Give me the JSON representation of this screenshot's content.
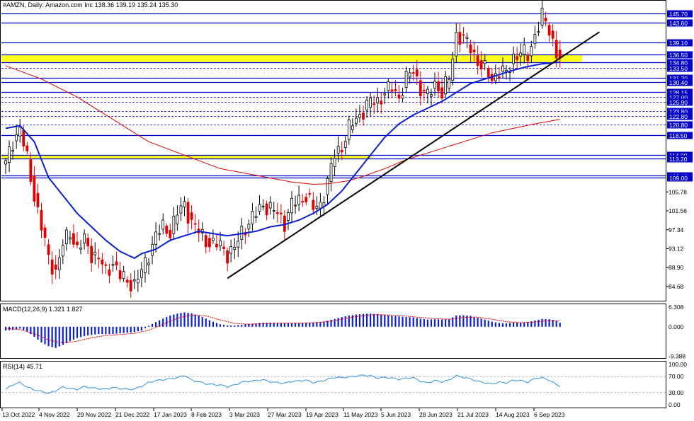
{
  "chart_data": {
    "type": "candlestick",
    "header": {
      "symbol": "#AMZN",
      "timeframe": "Daily",
      "name": "Amazon.com Inc",
      "ohlc": "138.36 139.19 135.24 135.30"
    },
    "price_axis": {
      "range": [
        81.5,
        148.5
      ],
      "grid_labels": [
        "105.78",
        "101.56",
        "97.34",
        "93.12",
        "88.90",
        "84.68"
      ]
    },
    "levels": [
      {
        "value": 145.7,
        "label": "145.70",
        "style": "solid"
      },
      {
        "value": 143.6,
        "label": "143.60",
        "style": "solid"
      },
      {
        "value": 139.1,
        "label": "139.10",
        "style": "solid"
      },
      {
        "value": 136.5,
        "label": "136.50",
        "style": "solid"
      },
      {
        "value": 134.8,
        "label": "134.80",
        "style": "solid"
      },
      {
        "value": 133.5,
        "label": "133.50",
        "style": "dashed"
      },
      {
        "value": 131.2,
        "label": "131.20",
        "style": "solid"
      },
      {
        "value": 130.4,
        "label": "130.40",
        "style": "solid"
      },
      {
        "value": 128.15,
        "label": "128.15",
        "style": "solid"
      },
      {
        "value": 127.0,
        "label": "127.00",
        "style": "dashed"
      },
      {
        "value": 125.9,
        "label": "125.90",
        "style": "dashed"
      },
      {
        "value": 123.8,
        "label": "123.80",
        "style": "dashed"
      },
      {
        "value": 122.8,
        "label": "122.80",
        "style": "dashed"
      },
      {
        "value": 120.8,
        "label": "120.80",
        "style": "dashed"
      },
      {
        "value": 118.5,
        "label": "118.50",
        "style": "solid"
      },
      {
        "value": 114.0,
        "label": "114.00",
        "style": "solid"
      },
      {
        "value": 113.2,
        "label": "113.20",
        "style": "solid"
      },
      {
        "value": 109.4,
        "label": "109.40",
        "style": "solid"
      },
      {
        "value": 109.0,
        "label": "109.00",
        "style": "solid"
      }
    ],
    "zones": [
      {
        "from": 134.8,
        "to": 136.5,
        "color": "#ffff00"
      },
      {
        "from": 113.2,
        "to": 114.0,
        "color": "#ffff00"
      }
    ],
    "x_labels": [
      "13 Oct 2022",
      "4 Nov 2022",
      "29 Nov 2022",
      "21 Dec 2022",
      "17 Jan 2023",
      "8 Feb 2023",
      "3 Mar 2023",
      "27 Mar 2023",
      "19 Apr 2023",
      "11 May 2023",
      "5 Jun 2023",
      "28 Jun 2023",
      "21 Jul 2023",
      "14 Aug 2023",
      "6 Sep 2023"
    ],
    "price_path": [
      [
        0,
        112
      ],
      [
        2,
        117
      ],
      [
        4,
        120
      ],
      [
        6,
        113
      ],
      [
        8,
        105
      ],
      [
        10,
        98
      ],
      [
        12,
        91
      ],
      [
        14,
        88
      ],
      [
        16,
        94
      ],
      [
        18,
        97
      ],
      [
        20,
        93
      ],
      [
        22,
        95
      ],
      [
        24,
        92
      ],
      [
        26,
        91
      ],
      [
        28,
        88
      ],
      [
        30,
        90
      ],
      [
        32,
        87
      ],
      [
        34,
        86
      ],
      [
        36,
        85
      ],
      [
        38,
        88
      ],
      [
        40,
        92
      ],
      [
        42,
        96
      ],
      [
        44,
        98
      ],
      [
        46,
        97
      ],
      [
        48,
        101
      ],
      [
        50,
        103
      ],
      [
        52,
        99
      ],
      [
        54,
        97
      ],
      [
        56,
        95
      ],
      [
        58,
        94
      ],
      [
        60,
        94
      ],
      [
        62,
        92
      ],
      [
        64,
        93
      ],
      [
        66,
        97
      ],
      [
        68,
        99
      ],
      [
        70,
        101
      ],
      [
        72,
        103
      ],
      [
        74,
        102
      ],
      [
        76,
        101
      ],
      [
        78,
        99
      ],
      [
        80,
        103
      ],
      [
        82,
        104
      ],
      [
        84,
        105
      ],
      [
        86,
        102
      ],
      [
        88,
        103
      ],
      [
        90,
        108
      ],
      [
        92,
        114
      ],
      [
        94,
        116
      ],
      [
        96,
        120
      ],
      [
        98,
        122
      ],
      [
        100,
        124
      ],
      [
        102,
        126
      ],
      [
        104,
        126
      ],
      [
        106,
        128
      ],
      [
        108,
        129
      ],
      [
        110,
        127
      ],
      [
        112,
        131
      ],
      [
        114,
        133
      ],
      [
        116,
        129
      ],
      [
        118,
        127
      ],
      [
        120,
        130
      ],
      [
        122,
        128
      ],
      [
        124,
        131
      ],
      [
        126,
        141
      ],
      [
        128,
        140
      ],
      [
        130,
        138
      ],
      [
        132,
        135
      ],
      [
        134,
        133
      ],
      [
        136,
        131
      ],
      [
        138,
        133
      ],
      [
        140,
        132
      ],
      [
        142,
        136
      ],
      [
        144,
        137
      ],
      [
        146,
        136
      ],
      [
        148,
        141
      ],
      [
        150,
        145
      ],
      [
        152,
        142
      ],
      [
        154,
        137
      ],
      [
        155,
        135.3
      ]
    ],
    "ma50": [
      [
        0,
        120
      ],
      [
        4,
        120.6
      ],
      [
        8,
        117
      ],
      [
        12,
        109
      ],
      [
        16,
        105
      ],
      [
        20,
        101
      ],
      [
        24,
        98
      ],
      [
        28,
        95
      ],
      [
        32,
        92.5
      ],
      [
        36,
        91
      ],
      [
        38,
        92
      ],
      [
        42,
        93
      ],
      [
        46,
        95
      ],
      [
        50,
        96
      ],
      [
        54,
        97
      ],
      [
        58,
        96.5
      ],
      [
        62,
        96
      ],
      [
        66,
        96.5
      ],
      [
        70,
        97
      ],
      [
        74,
        98
      ],
      [
        78,
        98.5
      ],
      [
        82,
        99.5
      ],
      [
        86,
        101
      ],
      [
        90,
        103
      ],
      [
        94,
        106
      ],
      [
        98,
        110
      ],
      [
        102,
        114
      ],
      [
        106,
        118
      ],
      [
        110,
        121
      ],
      [
        114,
        123
      ],
      [
        118,
        124.5
      ],
      [
        122,
        126
      ],
      [
        126,
        128
      ],
      [
        130,
        130
      ],
      [
        134,
        131
      ],
      [
        138,
        132
      ],
      [
        142,
        133
      ],
      [
        146,
        133.8
      ],
      [
        150,
        134.4
      ],
      [
        155,
        134.8
      ]
    ],
    "ma200": [
      [
        0,
        134
      ],
      [
        10,
        131
      ],
      [
        20,
        127
      ],
      [
        30,
        122
      ],
      [
        40,
        117
      ],
      [
        50,
        114
      ],
      [
        60,
        111
      ],
      [
        70,
        109.5
      ],
      [
        80,
        108
      ],
      [
        86,
        107.5
      ],
      [
        90,
        107.6
      ],
      [
        96,
        108.3
      ],
      [
        100,
        109.3
      ],
      [
        106,
        111
      ],
      [
        112,
        113
      ],
      [
        118,
        114.5
      ],
      [
        124,
        116
      ],
      [
        130,
        117.5
      ],
      [
        136,
        119
      ],
      [
        142,
        120
      ],
      [
        148,
        121
      ],
      [
        155,
        122
      ]
    ],
    "trendline": {
      "from": [
        62,
        86.5
      ],
      "to": [
        166,
        141.5
      ]
    },
    "macd": {
      "label": "MACD(12,26,9) 1.321 1.827",
      "range": [
        -10.0,
        7.2
      ],
      "axis_labels": [
        "6.308",
        "0.000",
        "-9.388"
      ],
      "histogram": [
        [
          0,
          -1.2
        ],
        [
          2,
          -1.0
        ],
        [
          4,
          -0.6
        ],
        [
          6,
          -1.5
        ],
        [
          8,
          -3.2
        ],
        [
          10,
          -5.0
        ],
        [
          12,
          -6.2
        ],
        [
          14,
          -6.8
        ],
        [
          16,
          -5.8
        ],
        [
          18,
          -4.6
        ],
        [
          20,
          -3.6
        ],
        [
          22,
          -3.0
        ],
        [
          24,
          -2.6
        ],
        [
          26,
          -2.3
        ],
        [
          28,
          -2.4
        ],
        [
          30,
          -2.3
        ],
        [
          32,
          -2.1
        ],
        [
          34,
          -1.9
        ],
        [
          36,
          -1.7
        ],
        [
          38,
          -1.2
        ],
        [
          40,
          0.3
        ],
        [
          42,
          1.5
        ],
        [
          44,
          2.6
        ],
        [
          46,
          3.6
        ],
        [
          48,
          4.2
        ],
        [
          50,
          4.6
        ],
        [
          52,
          4.3
        ],
        [
          54,
          3.6
        ],
        [
          56,
          2.6
        ],
        [
          58,
          1.6
        ],
        [
          60,
          0.8
        ],
        [
          62,
          0.4
        ],
        [
          64,
          0.4
        ],
        [
          66,
          0.6
        ],
        [
          68,
          0.9
        ],
        [
          70,
          1.1
        ],
        [
          72,
          1.3
        ],
        [
          74,
          1.3
        ],
        [
          76,
          1.2
        ],
        [
          78,
          1.1
        ],
        [
          80,
          1.1
        ],
        [
          82,
          1.2
        ],
        [
          84,
          1.3
        ],
        [
          86,
          1.4
        ],
        [
          88,
          1.5
        ],
        [
          90,
          1.9
        ],
        [
          92,
          2.5
        ],
        [
          94,
          3.1
        ],
        [
          96,
          3.6
        ],
        [
          98,
          3.9
        ],
        [
          100,
          4.1
        ],
        [
          102,
          4.2
        ],
        [
          104,
          4.0
        ],
        [
          106,
          3.8
        ],
        [
          108,
          3.5
        ],
        [
          110,
          3.3
        ],
        [
          112,
          3.1
        ],
        [
          114,
          3.0
        ],
        [
          116,
          2.6
        ],
        [
          118,
          2.3
        ],
        [
          120,
          2.4
        ],
        [
          122,
          2.3
        ],
        [
          124,
          2.4
        ],
        [
          126,
          3.6
        ],
        [
          128,
          3.7
        ],
        [
          130,
          3.5
        ],
        [
          132,
          2.9
        ],
        [
          134,
          2.3
        ],
        [
          136,
          1.6
        ],
        [
          138,
          1.2
        ],
        [
          140,
          1.1
        ],
        [
          142,
          1.3
        ],
        [
          144,
          1.4
        ],
        [
          146,
          1.5
        ],
        [
          148,
          2.0
        ],
        [
          150,
          2.5
        ],
        [
          152,
          2.4
        ],
        [
          154,
          2.0
        ],
        [
          155,
          1.3
        ]
      ],
      "signal": [
        [
          0,
          -0.5
        ],
        [
          4,
          -0.9
        ],
        [
          8,
          -2.2
        ],
        [
          12,
          -4.2
        ],
        [
          16,
          -5.2
        ],
        [
          20,
          -4.6
        ],
        [
          24,
          -3.5
        ],
        [
          28,
          -2.8
        ],
        [
          32,
          -2.5
        ],
        [
          36,
          -2.1
        ],
        [
          40,
          -1.1
        ],
        [
          44,
          0.8
        ],
        [
          48,
          2.7
        ],
        [
          52,
          3.8
        ],
        [
          56,
          3.5
        ],
        [
          60,
          2.2
        ],
        [
          64,
          1.1
        ],
        [
          68,
          0.8
        ],
        [
          72,
          1.0
        ],
        [
          76,
          1.2
        ],
        [
          80,
          1.2
        ],
        [
          84,
          1.2
        ],
        [
          88,
          1.4
        ],
        [
          92,
          2.0
        ],
        [
          96,
          2.9
        ],
        [
          100,
          3.6
        ],
        [
          104,
          3.9
        ],
        [
          108,
          3.7
        ],
        [
          112,
          3.4
        ],
        [
          116,
          3.0
        ],
        [
          120,
          2.6
        ],
        [
          124,
          2.4
        ],
        [
          128,
          3.0
        ],
        [
          132,
          3.1
        ],
        [
          136,
          2.4
        ],
        [
          140,
          1.6
        ],
        [
          144,
          1.3
        ],
        [
          148,
          1.5
        ],
        [
          152,
          2.0
        ],
        [
          155,
          1.8
        ]
      ]
    },
    "rsi": {
      "label": "RSI(14) 45.71",
      "range": [
        0,
        100
      ],
      "axis_labels": [
        "100.00",
        "70.00",
        "30.00",
        "0.00"
      ],
      "levels": [
        70,
        30
      ],
      "values": [
        [
          0,
          38
        ],
        [
          2,
          50
        ],
        [
          4,
          55
        ],
        [
          6,
          44
        ],
        [
          8,
          37
        ],
        [
          10,
          33
        ],
        [
          12,
          28
        ],
        [
          14,
          35
        ],
        [
          16,
          44
        ],
        [
          18,
          40
        ],
        [
          20,
          38
        ],
        [
          22,
          45
        ],
        [
          24,
          42
        ],
        [
          26,
          40
        ],
        [
          28,
          38
        ],
        [
          30,
          43
        ],
        [
          32,
          40
        ],
        [
          34,
          38
        ],
        [
          36,
          39
        ],
        [
          38,
          46
        ],
        [
          40,
          55
        ],
        [
          42,
          60
        ],
        [
          44,
          62
        ],
        [
          46,
          64
        ],
        [
          48,
          67
        ],
        [
          50,
          73
        ],
        [
          52,
          61
        ],
        [
          54,
          57
        ],
        [
          56,
          52
        ],
        [
          58,
          50
        ],
        [
          60,
          49
        ],
        [
          62,
          45
        ],
        [
          64,
          49
        ],
        [
          66,
          56
        ],
        [
          68,
          58
        ],
        [
          70,
          60
        ],
        [
          72,
          62
        ],
        [
          74,
          57
        ],
        [
          76,
          55
        ],
        [
          78,
          53
        ],
        [
          80,
          58
        ],
        [
          82,
          59
        ],
        [
          84,
          61
        ],
        [
          86,
          55
        ],
        [
          88,
          58
        ],
        [
          90,
          63
        ],
        [
          92,
          68
        ],
        [
          94,
          67
        ],
        [
          96,
          69
        ],
        [
          98,
          71
        ],
        [
          100,
          73
        ],
        [
          102,
          72
        ],
        [
          104,
          66
        ],
        [
          106,
          68
        ],
        [
          108,
          66
        ],
        [
          110,
          63
        ],
        [
          112,
          66
        ],
        [
          114,
          67
        ],
        [
          116,
          58
        ],
        [
          118,
          54
        ],
        [
          120,
          60
        ],
        [
          122,
          57
        ],
        [
          124,
          61
        ],
        [
          126,
          72
        ],
        [
          128,
          68
        ],
        [
          130,
          64
        ],
        [
          132,
          58
        ],
        [
          134,
          55
        ],
        [
          136,
          51
        ],
        [
          138,
          56
        ],
        [
          140,
          54
        ],
        [
          142,
          61
        ],
        [
          144,
          60
        ],
        [
          146,
          56
        ],
        [
          148,
          65
        ],
        [
          150,
          67
        ],
        [
          152,
          61
        ],
        [
          154,
          50
        ],
        [
          155,
          45.7
        ]
      ]
    }
  }
}
